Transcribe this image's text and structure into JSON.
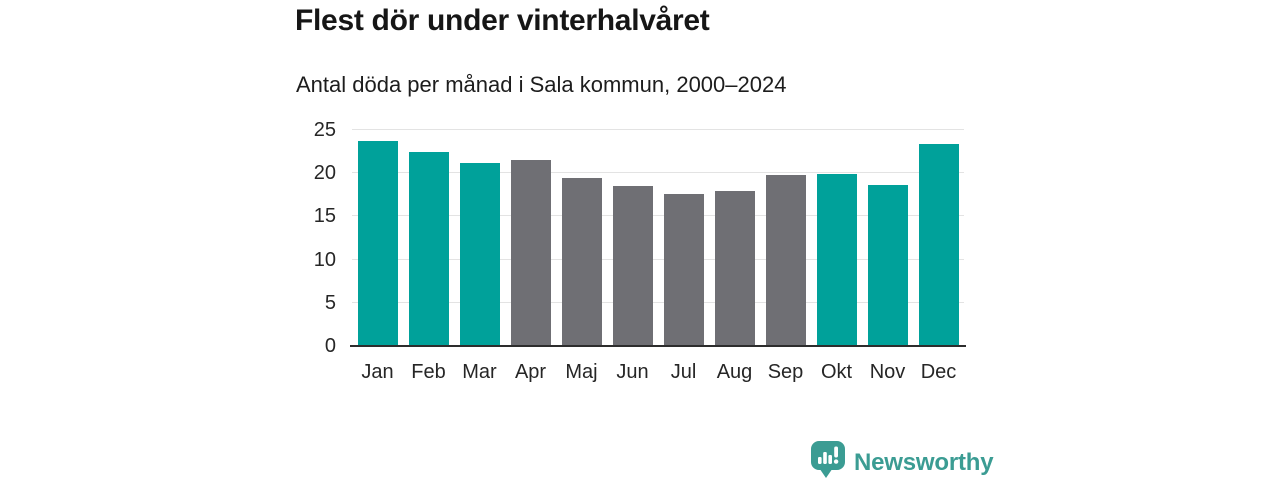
{
  "chart_data": {
    "type": "bar",
    "title": "Flest dör under vinterhalvåret",
    "subtitle": "Antal döda per månad i Sala kommun, 2000–2024",
    "categories": [
      "Jan",
      "Feb",
      "Mar",
      "Apr",
      "Maj",
      "Jun",
      "Jul",
      "Aug",
      "Sep",
      "Okt",
      "Nov",
      "Dec"
    ],
    "values": [
      23.7,
      22.4,
      21.2,
      21.5,
      19.4,
      18.5,
      17.6,
      17.9,
      19.8,
      19.9,
      18.6,
      23.4
    ],
    "color_keys": [
      "winter",
      "winter",
      "winter",
      "summer",
      "summer",
      "summer",
      "summer",
      "summer",
      "summer",
      "winter",
      "winter",
      "winter"
    ],
    "palette": {
      "winter": "#00a19a",
      "summer": "#6f6f74"
    },
    "xlabel": "",
    "ylabel": "",
    "ylim": [
      0,
      25
    ],
    "yticks": [
      0,
      5,
      10,
      15,
      20,
      25
    ],
    "grid": "horizontal",
    "legend": "none"
  },
  "footer": {
    "brand": "Newsworthy",
    "brand_color": "#3b9c93"
  }
}
